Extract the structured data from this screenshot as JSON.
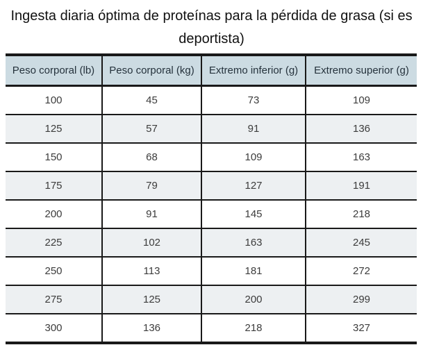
{
  "title": "Ingesta diaria óptima de proteínas para la pérdida de grasa (si es deportista)",
  "colors": {
    "header_bg": "#ccdbe2",
    "stripe_bg": "#edf0f2",
    "border": "#191919",
    "header_text": "#25323c",
    "cell_text": "#3c3c3c",
    "title_text": "#111111"
  },
  "table": {
    "columns": [
      "Peso corporal (lb)",
      "Peso corporal (kg)",
      "Extremo inferior (g)",
      "Extremo superior (g)"
    ],
    "rows": [
      [
        "100",
        "45",
        "73",
        "109"
      ],
      [
        "125",
        "57",
        "91",
        "136"
      ],
      [
        "150",
        "68",
        "109",
        "163"
      ],
      [
        "175",
        "79",
        "127",
        "191"
      ],
      [
        "200",
        "91",
        "145",
        "218"
      ],
      [
        "225",
        "102",
        "163",
        "245"
      ],
      [
        "250",
        "113",
        "181",
        "272"
      ],
      [
        "275",
        "125",
        "200",
        "299"
      ],
      [
        "300",
        "136",
        "218",
        "327"
      ]
    ]
  },
  "chart_data": {
    "type": "table",
    "title": "Ingesta diaria óptima de proteínas para la pérdida de grasa (si es deportista)",
    "columns": [
      "Peso corporal (lb)",
      "Peso corporal (kg)",
      "Extremo inferior (g)",
      "Extremo superior (g)"
    ],
    "rows": [
      [
        100,
        45,
        73,
        109
      ],
      [
        125,
        57,
        91,
        136
      ],
      [
        150,
        68,
        109,
        163
      ],
      [
        175,
        79,
        127,
        191
      ],
      [
        200,
        91,
        145,
        218
      ],
      [
        225,
        102,
        163,
        245
      ],
      [
        250,
        113,
        181,
        272
      ],
      [
        275,
        125,
        200,
        299
      ],
      [
        300,
        136,
        218,
        327
      ]
    ],
    "layout": {
      "striped_rows": "even rows shaded",
      "header_background": "#ccdbe2",
      "grid": "horizontal rules + internal column dividers, no outer side borders"
    }
  }
}
